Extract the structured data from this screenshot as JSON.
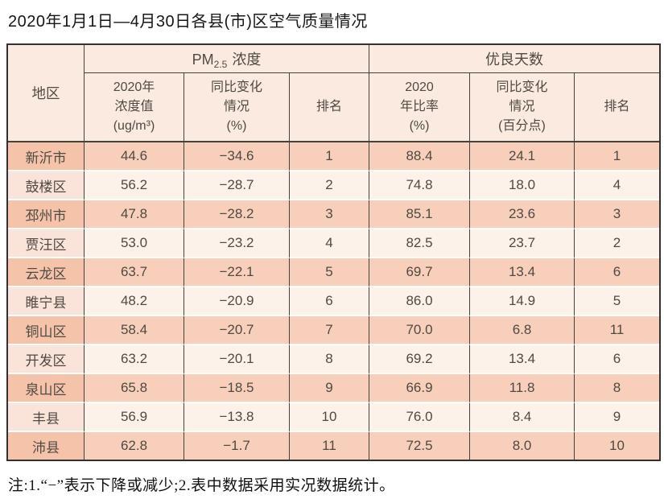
{
  "page": {
    "title": "2020年1月1日—4月30日各县(市)区空气质量情况",
    "note": "注:1.“−”表示下降或减少;2.表中数据采用实况数据统计。"
  },
  "table": {
    "headers": {
      "region": "地区",
      "pm25_prefix": "PM",
      "pm25_sub": "2.5",
      "pm25_suffix": "浓度",
      "good_days": "优良天数",
      "concentration": "2020年\n浓度值\n(ug/m³)",
      "pm_change": "同比变化\n情况\n(%)",
      "pm_rank": "排名",
      "ratio": "2020\n年比率\n(%)",
      "days_change": "同比变化\n情况\n(百分点)",
      "days_rank": "排名"
    }
  },
  "chart_data": {
    "type": "table",
    "title": "2020年1月1日—4月30日各县(市)区空气质量情况",
    "column_groups": [
      "PM2.5浓度",
      "优良天数"
    ],
    "columns": [
      "地区",
      "2020年浓度值(ug/m³)",
      "同比变化情况(%)",
      "排名",
      "2020年比率(%)",
      "同比变化情况(百分点)",
      "排名"
    ],
    "rows": [
      [
        "新沂市",
        "44.6",
        "−34.6",
        "1",
        "88.4",
        "24.1",
        "1"
      ],
      [
        "鼓楼区",
        "56.2",
        "−28.7",
        "2",
        "74.8",
        "18.0",
        "4"
      ],
      [
        "邳州市",
        "47.8",
        "−28.2",
        "3",
        "85.1",
        "23.6",
        "3"
      ],
      [
        "贾汪区",
        "53.0",
        "−23.2",
        "4",
        "82.5",
        "23.7",
        "2"
      ],
      [
        "云龙区",
        "63.7",
        "−22.1",
        "5",
        "69.7",
        "13.4",
        "6"
      ],
      [
        "睢宁县",
        "48.2",
        "−20.9",
        "6",
        "86.0",
        "14.9",
        "5"
      ],
      [
        "铜山区",
        "58.4",
        "−20.7",
        "7",
        "70.0",
        "6.8",
        "11"
      ],
      [
        "开发区",
        "63.2",
        "−20.1",
        "8",
        "69.2",
        "13.4",
        "6"
      ],
      [
        "泉山区",
        "65.8",
        "−18.5",
        "9",
        "66.9",
        "11.8",
        "8"
      ],
      [
        "丰县",
        "56.9",
        "−13.8",
        "10",
        "76.0",
        "8.4",
        "9"
      ],
      [
        "沛县",
        "62.8",
        "−1.7",
        "11",
        "72.5",
        "8.0",
        "10"
      ]
    ],
    "note": "注:1.“−”表示下降或减少;2.表中数据采用实况数据统计。"
  },
  "colors": {
    "row_salmon": "#f8cfba",
    "row_salmon_region": "#f5c3a9",
    "row_light": "#fdf2ea",
    "row_light_region": "#fae3d8",
    "header_bg": "#fbeadf",
    "grid_border": "#44423f",
    "outer_border": "#33312f",
    "text": "#4f4a44"
  }
}
